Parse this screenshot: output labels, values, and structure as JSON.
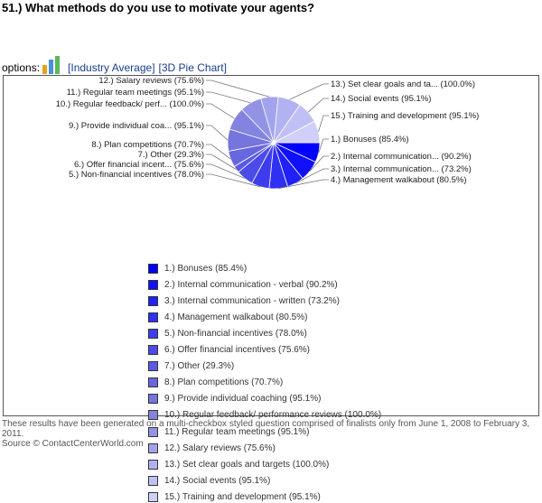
{
  "question": "51.) What methods do you use to motivate your agents?",
  "options": {
    "label": "options:",
    "link_industry": "[Industry Average]",
    "link_chart": "[3D Pie Chart]"
  },
  "chart_data": {
    "type": "pie",
    "categories": [
      "Bonuses",
      "Internal communication - verbal",
      "Internal communication - written",
      "Management walkabout",
      "Non-financial incentives",
      "Offer financial incentives",
      "Other",
      "Plan competitions",
      "Provide individual coaching",
      "Regular feedback/ performance reviews",
      "Regular team meetings",
      "Salary reviews",
      "Set clear goals and targets",
      "Social events",
      "Training and development"
    ],
    "values": [
      85.4,
      90.2,
      73.2,
      80.5,
      78.0,
      75.6,
      29.3,
      70.7,
      95.1,
      100.0,
      95.1,
      75.6,
      100.0,
      95.1,
      95.1
    ],
    "colors": [
      "#0000ff",
      "#1010fb",
      "#2020f7",
      "#3030f3",
      "#3d3ded",
      "#4b4be8",
      "#5959e4",
      "#6767e0",
      "#7575dd",
      "#8484e0",
      "#9393e6",
      "#a3a3ed",
      "#b2b2f2",
      "#c0c0f6",
      "#cfcffa"
    ],
    "pie_labels": [
      "1.) Bonuses (85.4%)",
      "2.) Internal communication... (90.2%)",
      "3.) Internal communication... (73.2%)",
      "4.) Management walkabout (80.5%)",
      "5.) Non-financial incentives (78.0%)",
      "6.) Offer financial incent... (75.6%)",
      "7.) Other (29.3%)",
      "8.) Plan competitions (70.7%)",
      "9.) Provide individual coa... (95.1%)",
      "10.) Regular feedback/ perf... (100.0%)",
      "11.) Regular team meetings (95.1%)",
      "12.) Salary reviews (75.6%)",
      "13.) Set clear goals and ta... (100.0%)",
      "14.) Social events (95.1%)",
      "15.) Training and development (95.1%)"
    ],
    "legend": [
      "1.) Bonuses (85.4%)",
      "2.) Internal communication - verbal (90.2%)",
      "3.) Internal communication - written (73.2%)",
      "4.) Management walkabout (80.5%)",
      "5.) Non-financial incentives (78.0%)",
      "6.) Offer financial incentives (75.6%)",
      "7.) Other (29.3%)",
      "8.) Plan competitions (70.7%)",
      "9.) Provide individual coaching (95.1%)",
      "10.) Regular feedback/ performance reviews (100.0%)",
      "11.) Regular team meetings (95.1%)",
      "12.) Salary reviews (75.6%)",
      "13.) Set clear goals and targets (100.0%)",
      "14.) Social events (95.1%)",
      "15.) Training and development (95.1%)"
    ]
  },
  "footer": {
    "note": "These results have been generated on a multi-checkbox styled question comprised of finalists only from June 1, 2008 to February 3, 2011.",
    "source": "Source © ContactCenterWorld.com"
  }
}
